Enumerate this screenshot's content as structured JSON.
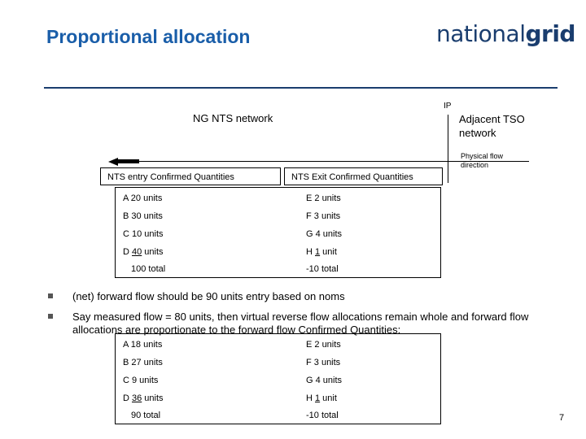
{
  "slide": {
    "title": "Proportional allocation",
    "logo": {
      "light": "national",
      "bold": "grid"
    },
    "page_number": "7"
  },
  "diagram": {
    "ip_label": "IP",
    "ng_network": "NG NTS network",
    "tso_network_line1": "Adjacent TSO",
    "tso_network_line2": "network",
    "flow_label_line1": "Physical flow",
    "flow_label_line2": "direction",
    "entry_header": "NTS entry Confirmed Quantities",
    "exit_header": "NTS Exit Confirmed Quantities"
  },
  "table1": {
    "entry": [
      {
        "prefix": "A 20 units",
        "value": "",
        "suffix": ""
      },
      {
        "prefix": "B 30 units",
        "value": "",
        "suffix": ""
      },
      {
        "prefix": "C 10 units",
        "value": "",
        "suffix": ""
      },
      {
        "prefix": "D ",
        "value": "40",
        "suffix": " units"
      }
    ],
    "entry_total": "100 total",
    "exit": [
      {
        "prefix": "E 2 units",
        "value": "",
        "suffix": ""
      },
      {
        "prefix": "F 3 units",
        "value": "",
        "suffix": ""
      },
      {
        "prefix": "G 4 units",
        "value": "",
        "suffix": ""
      },
      {
        "prefix": "H ",
        "value": "1",
        "suffix": " unit"
      }
    ],
    "exit_total": "-10 total"
  },
  "bullets": [
    "(net) forward flow should be 90 units entry based on noms",
    "Say measured flow = 80 units, then virtual reverse flow allocations remain whole and forward flow allocations are proportionate to the forward flow Confirmed Quantities:"
  ],
  "table2": {
    "entry": [
      {
        "prefix": "A 18 units",
        "value": "",
        "suffix": ""
      },
      {
        "prefix": "B 27 units",
        "value": "",
        "suffix": ""
      },
      {
        "prefix": "C 9 units",
        "value": "",
        "suffix": ""
      },
      {
        "prefix": "D ",
        "value": "36",
        "suffix": " units"
      }
    ],
    "entry_total": "90 total",
    "exit": [
      {
        "prefix": "E 2 units",
        "value": "",
        "suffix": ""
      },
      {
        "prefix": "F 3 units",
        "value": "",
        "suffix": ""
      },
      {
        "prefix": "G 4 units",
        "value": "",
        "suffix": ""
      },
      {
        "prefix": "H ",
        "value": "1",
        "suffix": " unit"
      }
    ],
    "exit_total": "-10 total"
  },
  "colors": {
    "title": "#1a5ea9",
    "logo": "#1a3d6e",
    "rule": "#1a3d6e"
  }
}
